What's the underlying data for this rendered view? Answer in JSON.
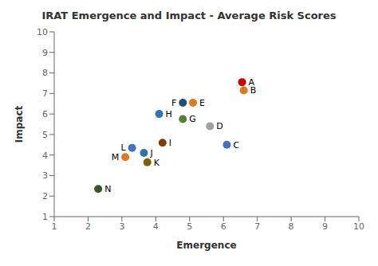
{
  "chart_data": {
    "type": "scatter",
    "title": "IRAT Emergence and Impact - Average Risk Scores",
    "xlabel": "Emergence",
    "ylabel": "Impact",
    "xlim": [
      1,
      10
    ],
    "ylim": [
      1,
      10
    ],
    "xticks": [
      1,
      2,
      3,
      4,
      5,
      6,
      7,
      8,
      9,
      10
    ],
    "yticks": [
      1,
      2,
      3,
      4,
      5,
      6,
      7,
      8,
      9,
      10
    ],
    "grid": false,
    "points": [
      {
        "label": "A",
        "x": 6.55,
        "y": 7.55,
        "color": "#cc0000"
      },
      {
        "label": "B",
        "x": 6.6,
        "y": 7.15,
        "color": "#e07820"
      },
      {
        "label": "E",
        "x": 5.1,
        "y": 6.55,
        "color": "#e07820"
      },
      {
        "label": "F",
        "x": 4.8,
        "y": 6.55,
        "color": "#1f4e79"
      },
      {
        "label": "G",
        "x": 4.8,
        "y": 5.75,
        "color": "#538135"
      },
      {
        "label": "H",
        "x": 4.1,
        "y": 6.0,
        "color": "#2e75b6"
      },
      {
        "label": "D",
        "x": 5.6,
        "y": 5.4,
        "color": "#a0a0a0"
      },
      {
        "label": "C",
        "x": 6.1,
        "y": 4.5,
        "color": "#4472c4"
      },
      {
        "label": "I",
        "x": 4.2,
        "y": 4.6,
        "color": "#843c0c"
      },
      {
        "label": "L",
        "x": 3.3,
        "y": 4.35,
        "color": "#4472c4"
      },
      {
        "label": "J",
        "x": 3.65,
        "y": 4.1,
        "color": "#2e75b6"
      },
      {
        "label": "K",
        "x": 3.75,
        "y": 3.65,
        "color": "#7f6000"
      },
      {
        "label": "M",
        "x": 3.1,
        "y": 3.9,
        "color": "#e07820"
      },
      {
        "label": "N",
        "x": 2.3,
        "y": 2.35,
        "color": "#375623"
      }
    ]
  }
}
